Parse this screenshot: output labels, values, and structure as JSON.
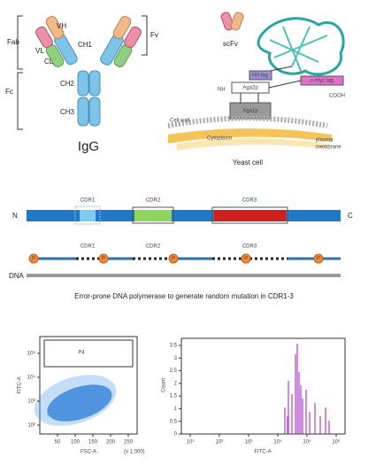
{
  "igg": {
    "fab": "Fab",
    "fv": "Fv",
    "fc": "Fc",
    "vh": "VH",
    "vl": "VL",
    "ch1": "CH1",
    "cl": "CL",
    "ch2": "CH2",
    "ch3": "CH3",
    "title": "IgG"
  },
  "yeast": {
    "scfv": "scFv",
    "ha_tag": "HA tag",
    "aga2p": "Aga2p",
    "nh": "NH",
    "cmyc_tag": "c-myc tag",
    "cooh": "COOH",
    "aga1p": "Aga1p",
    "cell_wall": "Cell wall",
    "cytoplasm": "Cytoplasm",
    "plasma_membrane": [
      "plasma",
      "membrane"
    ],
    "title": "Yeast cell"
  },
  "protein": {
    "n": "N",
    "c": "C",
    "cdrs": [
      "CDR1",
      "CDR2",
      "CDR3"
    ]
  },
  "gene": {
    "cdrs": [
      "CDR1",
      "CDR2",
      "CDR3"
    ],
    "primer": "P",
    "dna": "DNA",
    "caption": "Error-prone DNA polymerase to generate random mutation in CDR1-3"
  },
  "flow_plot": {
    "gate": "P4",
    "y_label": "FITC-A",
    "x_label": "FSC-A",
    "x_unit": "(x 1,000)",
    "x_ticks": [
      "50",
      "100",
      "150",
      "200",
      "250"
    ],
    "y_ticks": [
      "10²",
      "10³",
      "10⁴",
      "10⁵"
    ]
  },
  "histogram": {
    "y_label": "Count",
    "x_label": "FITC-A",
    "y_ticks": [
      "0",
      "0.5",
      "1",
      "1.5",
      "2",
      "2.5",
      "3",
      "3.5"
    ],
    "x_ticks": [
      "10¹",
      "10²",
      "10³",
      "10⁴",
      "10⁵",
      "10⁶"
    ]
  }
}
